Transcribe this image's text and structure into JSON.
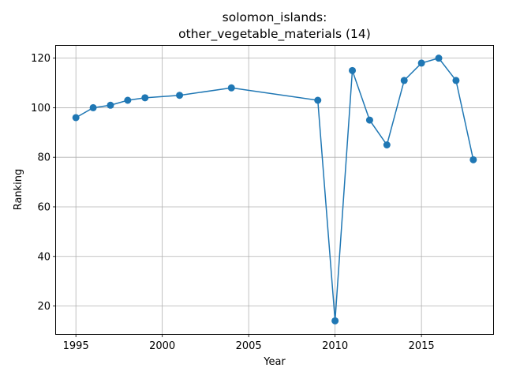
{
  "chart_data": {
    "type": "line",
    "title_line1": "solomon_islands:",
    "title_line2": "other_vegetable_materials (14)",
    "xlabel": "Year",
    "ylabel": "Ranking",
    "xlim": [
      1993.85,
      2019.15
    ],
    "ylim": [
      8.7,
      125.3
    ],
    "xticks": [
      1995,
      2000,
      2005,
      2010,
      2015
    ],
    "yticks": [
      20,
      40,
      60,
      80,
      100,
      120
    ],
    "grid": true,
    "series": [
      {
        "color": "#1f77b4",
        "marker": "circle",
        "x": [
          1995,
          1996,
          1997,
          1998,
          1999,
          2001,
          2004,
          2009,
          2010,
          2011,
          2012,
          2013,
          2014,
          2015,
          2016,
          2017,
          2018
        ],
        "y": [
          96,
          100,
          101,
          103,
          104,
          105,
          108,
          103,
          14,
          115,
          95,
          85,
          111,
          118,
          120,
          111,
          79
        ]
      }
    ]
  }
}
